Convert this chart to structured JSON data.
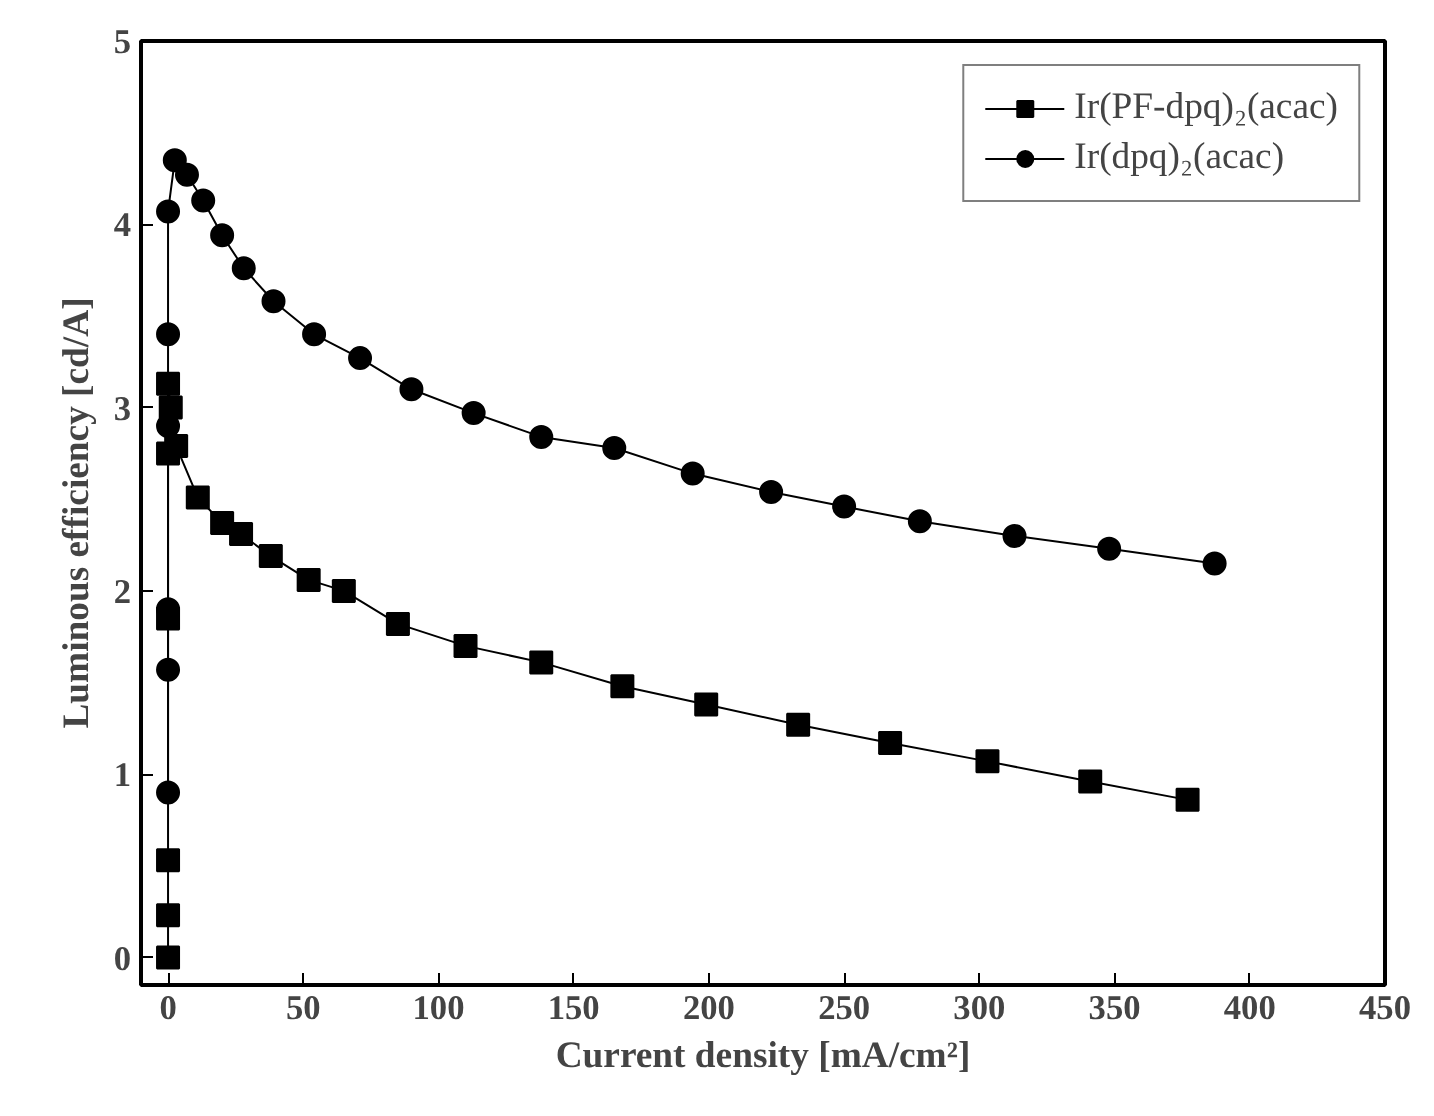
{
  "chart_data": {
    "type": "line",
    "xlabel": "Current density [mA/cm²]",
    "ylabel": "Luminous efficiency [cd/A]",
    "xlim": [
      -10,
      450
    ],
    "ylim": [
      -0.15,
      5
    ],
    "xticks": [
      0,
      50,
      100,
      150,
      200,
      250,
      300,
      350,
      400,
      450
    ],
    "yticks": [
      0,
      1,
      2,
      3,
      4,
      5
    ],
    "grid": false,
    "legend": "top right",
    "line_style": "solid",
    "series": [
      {
        "name": "Ir(PF-dpq)₂(acac)",
        "color": "#000000",
        "marker": "square",
        "x": [
          0,
          0,
          0,
          0,
          0,
          0,
          1,
          3,
          11,
          20,
          27,
          38,
          52,
          65,
          85,
          110,
          138,
          168,
          199,
          233,
          267,
          303,
          341,
          377
        ],
        "values": [
          0.0,
          0.23,
          0.53,
          1.85,
          2.75,
          3.13,
          3.0,
          2.79,
          2.51,
          2.37,
          2.31,
          2.19,
          2.06,
          2.0,
          1.82,
          1.7,
          1.61,
          1.48,
          1.38,
          1.27,
          1.17,
          1.07,
          0.96,
          0.86
        ]
      },
      {
        "name": "Ir(dpq)₂(acac)",
        "color": "#000000",
        "marker": "circle",
        "x": [
          0,
          0,
          0,
          0,
          0,
          0,
          2.5,
          7,
          13,
          20,
          28,
          39,
          54,
          71,
          90,
          113,
          138,
          165,
          194,
          223,
          250,
          278,
          313,
          348,
          387
        ],
        "values": [
          0.9,
          1.57,
          1.9,
          2.9,
          3.4,
          4.07,
          4.35,
          4.27,
          4.13,
          3.94,
          3.76,
          3.58,
          3.4,
          3.27,
          3.1,
          2.97,
          2.84,
          2.78,
          2.64,
          2.54,
          2.46,
          2.38,
          2.3,
          2.23,
          2.15
        ]
      }
    ]
  }
}
